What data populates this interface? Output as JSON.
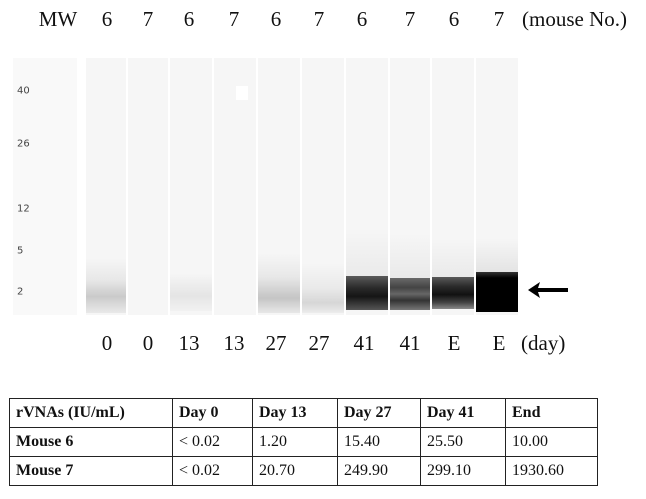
{
  "top_labels": {
    "mw": "MW",
    "lanes": [
      "6",
      "7",
      "6",
      "7",
      "6",
      "7",
      "6",
      "7",
      "6",
      "7"
    ],
    "suffix": "(mouse No.)"
  },
  "mw_markers": [
    "40",
    "26",
    "12",
    "5",
    "2"
  ],
  "bottom_labels": {
    "lanes": [
      "0",
      "0",
      "13",
      "13",
      "27",
      "27",
      "41",
      "41",
      "E",
      "E"
    ],
    "suffix": "(day)"
  },
  "table": {
    "headers": [
      "rVNAs (IU/mL)",
      "Day 0",
      "Day 13",
      "Day 27",
      "Day 41",
      "End"
    ],
    "rows": [
      [
        "Mouse 6",
        "< 0.02",
        "1.20",
        "15.40",
        "25.50",
        "10.00"
      ],
      [
        "Mouse 7",
        "< 0.02",
        "20.70",
        "249.90",
        "299.10",
        "1930.60"
      ]
    ]
  },
  "colors": {
    "background": "#ffffff",
    "lane": "#f6f6f6",
    "band": "#000000"
  },
  "icons": {
    "arrow": "left-arrow-icon"
  }
}
